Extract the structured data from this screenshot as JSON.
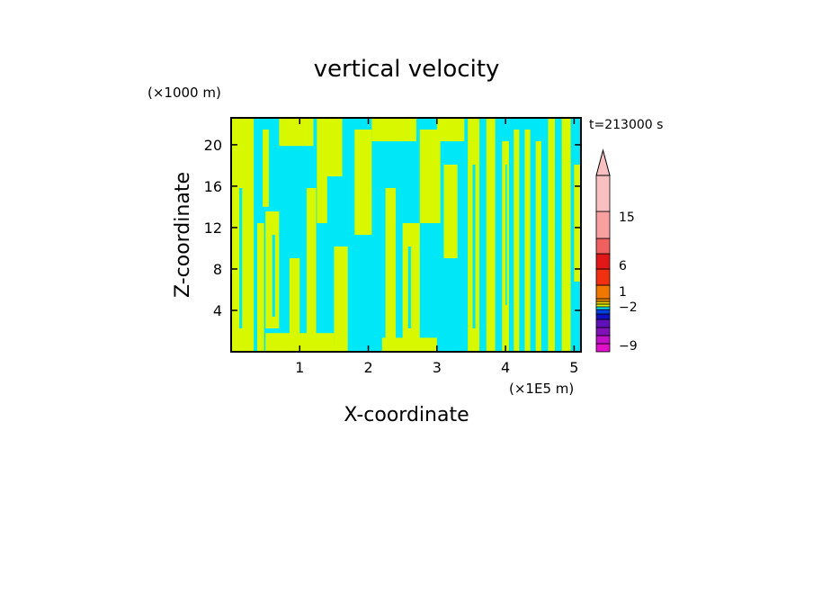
{
  "chart_data": {
    "type": "heatmap",
    "title": "vertical velocity",
    "xlabel": "X-coordinate",
    "ylabel": "Z-coordinate",
    "x_unit": "(×1E5 m)",
    "y_unit": "(×1000 m)",
    "time_label": "t=213000 s",
    "xlim": [
      0,
      5.1
    ],
    "ylim": [
      0,
      22.6
    ],
    "x_ticks": [
      1,
      2,
      3,
      4,
      5
    ],
    "x_tick_labels": [
      "1",
      "2",
      "3",
      "4",
      "5"
    ],
    "y_ticks": [
      4,
      8,
      12,
      16,
      20
    ],
    "y_tick_labels": [
      "4",
      "8",
      "12",
      "16",
      "20"
    ],
    "field_colors": {
      "negative": "#00e8f8",
      "positive": "#d8f800"
    },
    "colorbar": {
      "label_values": [
        "15",
        "6",
        "1",
        "−2",
        "−9"
      ],
      "levels": [
        {
          "color": "#e010c8"
        },
        {
          "color": "#c010c8"
        },
        {
          "color": "#8010b8"
        },
        {
          "color": "#6010b8"
        },
        {
          "color": "#1010c0"
        },
        {
          "color": "#0040e0"
        },
        {
          "color": "#00e8f8"
        },
        {
          "color": "#d8f800"
        },
        {
          "color": "#f0d000"
        },
        {
          "color": "#f09000"
        },
        {
          "color": "#f07800"
        },
        {
          "color": "#f03010"
        },
        {
          "color": "#e01818"
        },
        {
          "color": "#f06060"
        },
        {
          "color": "#f8a0a0"
        },
        {
          "color": "#f8c0c0"
        }
      ]
    }
  }
}
